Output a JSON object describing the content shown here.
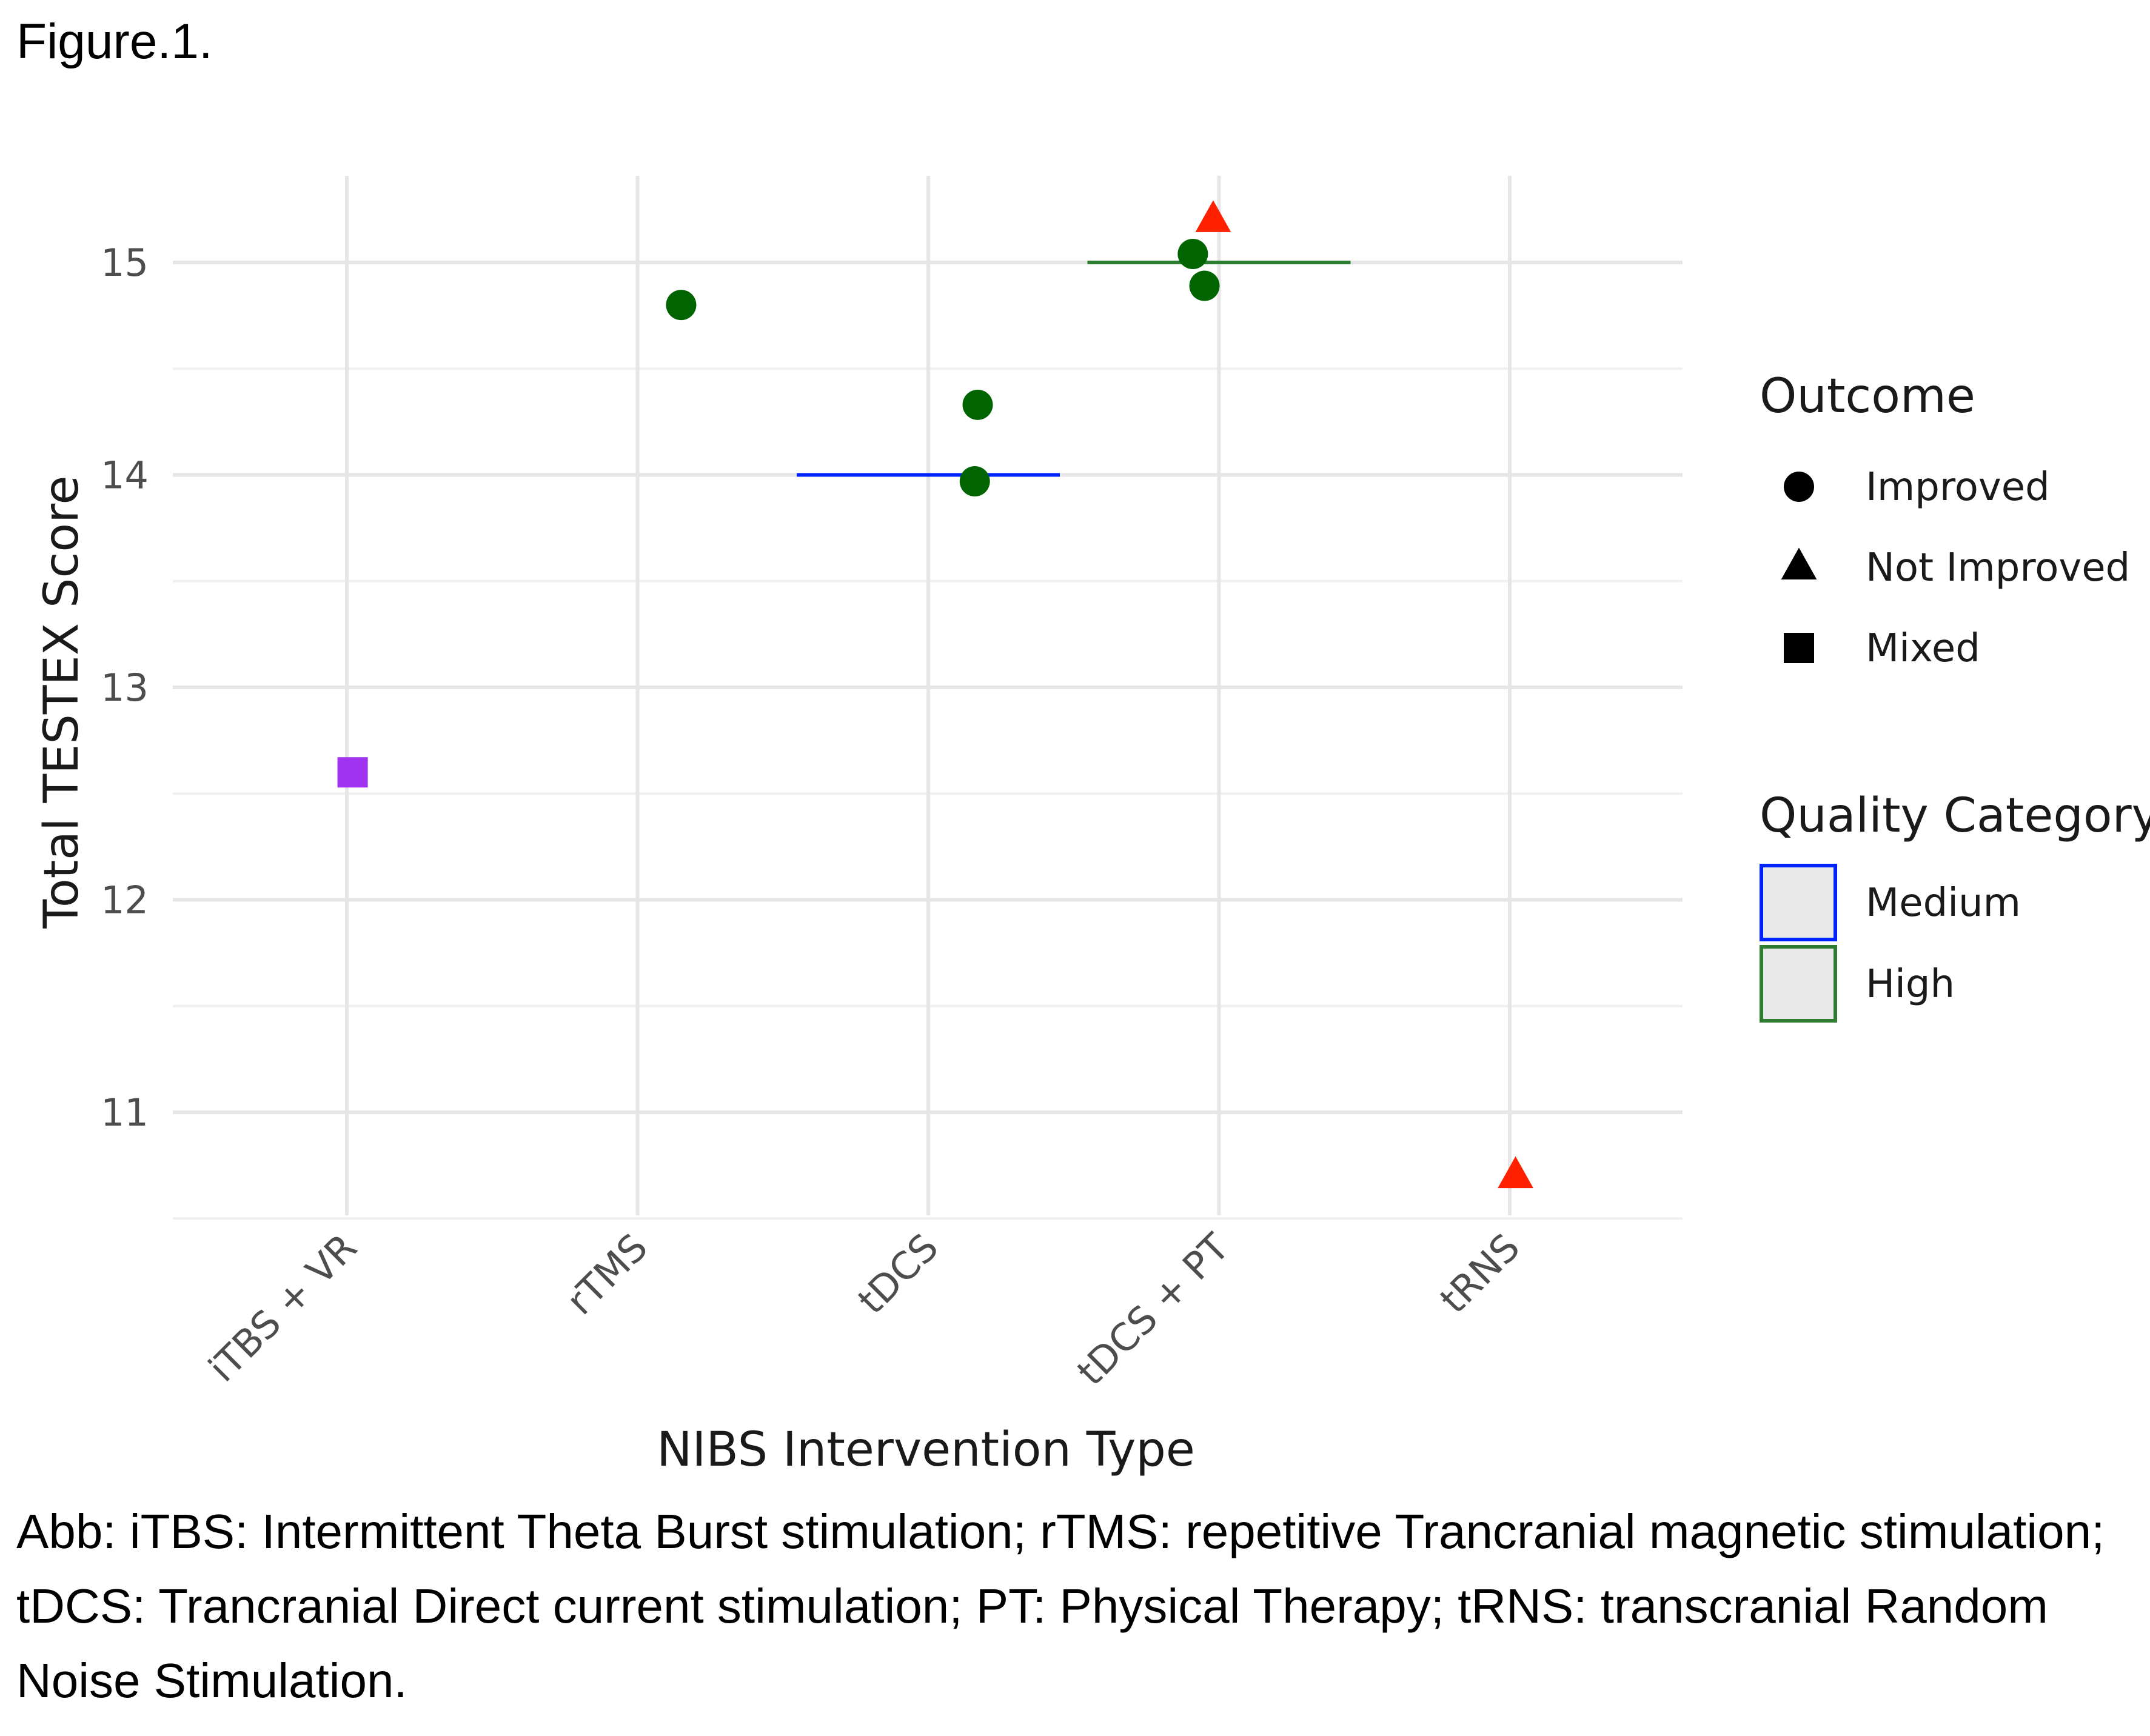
{
  "figure_label": "Figure.1.",
  "caption": "Abb: iTBS: Intermittent Theta Burst stimulation; rTMS: repetitive Trancranial magnetic stimulation; tDCS: Trancranial Direct current stimulation; PT: Physical Therapy; tRNS: transcranial Random Noise Stimulation.",
  "chart_data": {
    "type": "scatter",
    "title": "",
    "xlabel": "NIBS Intervention Type",
    "ylabel": "Total TESTEX Score",
    "categories": [
      "iTBS + VR",
      "rTMS",
      "tDCS",
      "tDCS + PT",
      "tRNS"
    ],
    "yticks": [
      11,
      12,
      13,
      14,
      15
    ],
    "ylim": [
      10.5,
      15.4
    ],
    "grid": true,
    "points": [
      {
        "category": "iTBS + VR",
        "jitter": 0.02,
        "y": 12.6,
        "outcome": "Mixed",
        "color": "#a033f0"
      },
      {
        "category": "rTMS",
        "jitter": 0.15,
        "y": 14.8,
        "outcome": "Improved",
        "color": "#006400"
      },
      {
        "category": "tDCS",
        "jitter": 0.17,
        "y": 14.33,
        "outcome": "Improved",
        "color": "#006400"
      },
      {
        "category": "tDCS",
        "jitter": 0.16,
        "y": 13.97,
        "outcome": "Improved",
        "color": "#006400"
      },
      {
        "category": "tDCS + PT",
        "jitter": -0.09,
        "y": 15.04,
        "outcome": "Improved",
        "color": "#006400"
      },
      {
        "category": "tDCS + PT",
        "jitter": -0.05,
        "y": 14.89,
        "outcome": "Improved",
        "color": "#006400"
      },
      {
        "category": "tDCS + PT",
        "jitter": -0.02,
        "y": 15.2,
        "outcome": "Not Improved",
        "color": "#ff2000"
      },
      {
        "category": "tRNS",
        "jitter": 0.02,
        "y": 10.7,
        "outcome": "Not Improved",
        "color": "#ff2000"
      }
    ],
    "reference_lines": [
      {
        "category": "tDCS",
        "y": 14.0,
        "quality": "Medium",
        "color": "#0022ff"
      },
      {
        "category": "tDCS + PT",
        "y": 15.0,
        "quality": "High",
        "color": "#2e7d32"
      }
    ],
    "legend": {
      "placement": "right",
      "outcome": {
        "title": "Outcome",
        "entries": [
          {
            "label": "Improved",
            "shape": "circle"
          },
          {
            "label": "Not Improved",
            "shape": "triangle"
          },
          {
            "label": "Mixed",
            "shape": "square"
          }
        ]
      },
      "quality": {
        "title": "Quality Category",
        "entries": [
          {
            "label": "Medium",
            "color": "#0022ff"
          },
          {
            "label": "High",
            "color": "#2e7d32"
          }
        ]
      }
    }
  }
}
